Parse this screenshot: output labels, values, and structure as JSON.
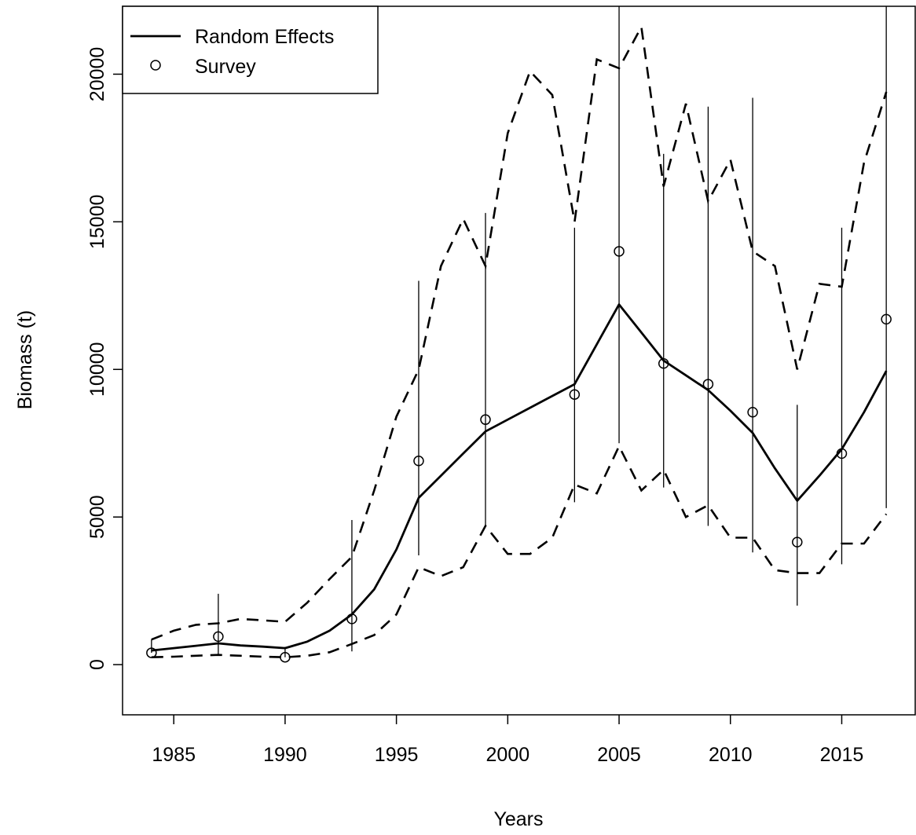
{
  "chart_data": {
    "type": "line",
    "title": "",
    "xlabel": "Years",
    "ylabel": "Biomass (t)",
    "xlim": [
      1982.7,
      2018.3
    ],
    "ylim": [
      -1700,
      22300
    ],
    "x_ticks": [
      1985,
      1990,
      1995,
      2000,
      2005,
      2010,
      2015
    ],
    "y_ticks": [
      0,
      5000,
      10000,
      15000,
      20000
    ],
    "x_tick_labels": [
      "1985",
      "1990",
      "1995",
      "2000",
      "2005",
      "2010",
      "2015"
    ],
    "y_tick_labels": [
      "0",
      "5000",
      "10000",
      "15000",
      "20000"
    ],
    "legend": {
      "placement": "top-left",
      "entries": [
        "Random Effects",
        "Survey"
      ]
    },
    "years": [
      1984,
      1985,
      1986,
      1987,
      1988,
      1989,
      1990,
      1991,
      1992,
      1993,
      1994,
      1995,
      1996,
      1997,
      1998,
      1999,
      2000,
      2001,
      2002,
      2003,
      2004,
      2005,
      2006,
      2007,
      2008,
      2009,
      2010,
      2011,
      2012,
      2013,
      2014,
      2015,
      2016,
      2017
    ],
    "random_effects": [
      480,
      560,
      640,
      720,
      650,
      610,
      560,
      780,
      1150,
      1700,
      2550,
      3900,
      5650,
      6400,
      7150,
      7900,
      8300,
      8700,
      9100,
      9500,
      10850,
      12200,
      11250,
      10300,
      9800,
      9300,
      8600,
      7850,
      6650,
      5550,
      6400,
      7300,
      8550,
      9950
    ],
    "upper_ci": [
      850,
      1150,
      1350,
      1400,
      1550,
      1500,
      1450,
      2100,
      2900,
      3650,
      5900,
      8400,
      10000,
      13500,
      15100,
      13500,
      18000,
      20100,
      19300,
      15000,
      20500,
      20200,
      21600,
      16200,
      19000,
      15700,
      17100,
      14000,
      13500,
      10000,
      12900,
      12800,
      17000,
      19400
    ],
    "lower_ci": [
      250,
      270,
      300,
      330,
      300,
      270,
      250,
      300,
      420,
      700,
      1000,
      1700,
      3300,
      3000,
      3300,
      4700,
      3750,
      3750,
      4300,
      6100,
      5800,
      7400,
      5900,
      6600,
      5000,
      5400,
      4300,
      4300,
      3200,
      3100,
      3100,
      4100,
      4100,
      5100
    ],
    "survey": {
      "years": [
        1984,
        1987,
        1990,
        1993,
        1996,
        1999,
        2003,
        2005,
        2007,
        2009,
        2011,
        2013,
        2015,
        2017
      ],
      "values": [
        400,
        950,
        250,
        1550,
        6900,
        8300,
        9150,
        14000,
        10200,
        9500,
        8550,
        4150,
        7150,
        11700
      ],
      "lower": [
        400,
        300,
        250,
        450,
        3700,
        4700,
        5500,
        7500,
        6000,
        4700,
        3800,
        2000,
        3400,
        5300
      ],
      "upper": [
        850,
        2400,
        600,
        4900,
        13000,
        15300,
        14800,
        22300,
        17300,
        18900,
        19200,
        8800,
        14800,
        22300
      ]
    }
  }
}
